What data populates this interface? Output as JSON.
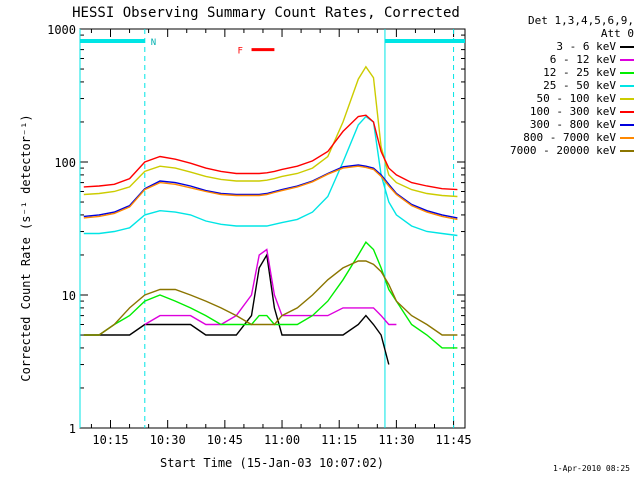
{
  "title": "HESSI Observing Summary Count Rates, Corrected",
  "ylabel": "Corrected Count Rate (s⁻¹ detector⁻¹)",
  "xlabel": "Start Time (15-Jan-03 10:07:02)",
  "stamp": "1-Apr-2010 08:25",
  "legend_header": [
    "Det 1,3,4,5,6,9,",
    "Att 0"
  ],
  "markers": {
    "night": "N",
    "flare": "F"
  },
  "chart_data": {
    "type": "line",
    "xlabel": "Start Time (15-Jan-03 10:07:02)",
    "ylabel": "Corrected Count Rate (s^-1 detector^-1)",
    "ylim": [
      1,
      1000
    ],
    "yscale": "log",
    "xlim": [
      "10:07",
      "11:48"
    ],
    "xticks": [
      "10:15",
      "10:30",
      "10:45",
      "11:00",
      "11:15",
      "11:30",
      "11:45"
    ],
    "yticks": [
      "1",
      "10",
      "100",
      "1000"
    ],
    "x": [
      "10:08",
      "10:12",
      "10:16",
      "10:20",
      "10:24",
      "10:28",
      "10:32",
      "10:36",
      "10:40",
      "10:44",
      "10:48",
      "10:52",
      "10:54",
      "10:56",
      "10:58",
      "11:00",
      "11:04",
      "11:08",
      "11:12",
      "11:16",
      "11:20",
      "11:22",
      "11:24",
      "11:26",
      "11:28",
      "11:30",
      "11:34",
      "11:38",
      "11:42",
      "11:46"
    ],
    "series": [
      {
        "name": "3 - 6 keV",
        "color": "#000000",
        "values": [
          5,
          5,
          5,
          5,
          6,
          6,
          6,
          6,
          5,
          5,
          5,
          7,
          16,
          20,
          8,
          5,
          5,
          5,
          5,
          5,
          6,
          7,
          6,
          5,
          3,
          null,
          null,
          null,
          null,
          null
        ]
      },
      {
        "name": "6 - 12 keV",
        "color": "#dd00dd",
        "values": [
          null,
          null,
          null,
          null,
          6,
          7,
          7,
          7,
          6,
          6,
          7,
          10,
          20,
          22,
          10,
          7,
          7,
          7,
          7,
          8,
          8,
          8,
          8,
          7,
          6,
          6,
          null,
          null,
          null,
          null
        ]
      },
      {
        "name": "12 - 25 keV",
        "color": "#00ee00",
        "values": [
          5,
          5,
          6,
          7,
          9,
          10,
          9,
          8,
          7,
          6,
          6,
          6,
          7,
          7,
          6,
          6,
          6,
          7,
          9,
          13,
          20,
          25,
          22,
          16,
          11,
          9,
          6,
          5,
          4,
          4
        ]
      },
      {
        "name": "25 - 50 keV",
        "color": "#00e5e5",
        "values": [
          29,
          29,
          30,
          32,
          40,
          43,
          42,
          40,
          36,
          34,
          33,
          33,
          33,
          33,
          34,
          35,
          37,
          42,
          55,
          100,
          190,
          220,
          200,
          80,
          50,
          40,
          33,
          30,
          29,
          28
        ]
      },
      {
        "name": "50 - 100 keV",
        "color": "#cccc00",
        "values": [
          57,
          58,
          60,
          65,
          85,
          93,
          90,
          84,
          78,
          74,
          72,
          72,
          72,
          73,
          75,
          78,
          82,
          90,
          110,
          200,
          420,
          520,
          430,
          130,
          80,
          70,
          62,
          58,
          56,
          55
        ]
      },
      {
        "name": "100 - 300 keV",
        "color": "#ff0000",
        "values": [
          65,
          66,
          68,
          75,
          100,
          110,
          105,
          98,
          90,
          85,
          82,
          82,
          82,
          83,
          85,
          88,
          93,
          102,
          120,
          170,
          220,
          225,
          200,
          120,
          90,
          80,
          70,
          66,
          63,
          62
        ]
      },
      {
        "name": "300 - 800 keV",
        "color": "#0000dd",
        "values": [
          39,
          40,
          42,
          47,
          63,
          72,
          70,
          66,
          61,
          58,
          57,
          57,
          57,
          58,
          60,
          62,
          66,
          72,
          82,
          92,
          95,
          93,
          90,
          80,
          68,
          58,
          48,
          43,
          40,
          38
        ]
      },
      {
        "name": "800 - 7000 keV",
        "color": "#ff8800",
        "values": [
          38,
          39,
          41,
          46,
          62,
          70,
          68,
          64,
          60,
          57,
          56,
          56,
          56,
          57,
          59,
          61,
          65,
          71,
          81,
          90,
          93,
          91,
          88,
          78,
          66,
          57,
          47,
          42,
          39,
          37
        ]
      },
      {
        "name": "7000 - 20000 keV",
        "color": "#8b7500",
        "values": [
          5,
          5,
          6,
          8,
          10,
          11,
          11,
          10,
          9,
          8,
          7,
          6,
          6,
          6,
          6,
          7,
          8,
          10,
          13,
          16,
          18,
          18,
          17,
          15,
          12,
          9,
          7,
          6,
          5,
          5
        ]
      }
    ],
    "night_bars": [
      {
        "start": "10:07",
        "end": "10:24"
      },
      {
        "start": "11:27",
        "end": "11:48"
      }
    ],
    "vlines_cyan": [
      "10:07",
      "10:24",
      "11:27",
      "11:45"
    ],
    "flare_bar": {
      "start": "10:52",
      "end": "10:58",
      "y": 700
    }
  }
}
